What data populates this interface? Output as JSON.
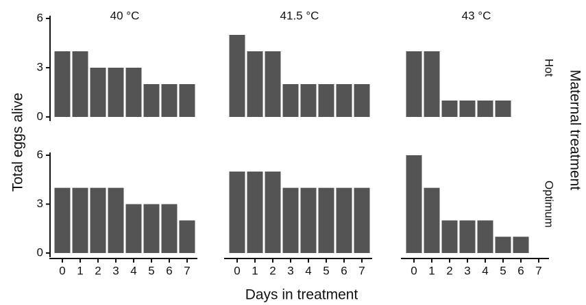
{
  "figure": {
    "ylabel": "Total eggs alive",
    "xlabel": "Days in treatment",
    "row_group_label": "Maternal treatment",
    "ylim": [
      0,
      6
    ],
    "yticks": [
      0,
      3,
      6
    ],
    "color": "#545454"
  },
  "chart_data": [
    {
      "type": "bar",
      "title": "40 °C",
      "values": [
        4,
        4,
        3,
        3,
        3,
        2,
        2,
        2
      ]
    },
    {
      "type": "bar",
      "title": "41.5 °C",
      "values": [
        5,
        4,
        4,
        2,
        2,
        2,
        2,
        2
      ]
    },
    {
      "type": "bar",
      "title": "43 °C",
      "row_label": "Hot",
      "values": [
        4,
        4,
        1,
        1,
        1,
        1,
        0,
        0
      ]
    },
    {
      "type": "bar",
      "categories": [
        0,
        1,
        2,
        3,
        4,
        5,
        6,
        7
      ],
      "values": [
        4,
        4,
        4,
        4,
        3,
        3,
        3,
        2
      ]
    },
    {
      "type": "bar",
      "categories": [
        0,
        1,
        2,
        3,
        4,
        5,
        6,
        7
      ],
      "values": [
        5,
        5,
        5,
        4,
        4,
        4,
        4,
        4
      ]
    },
    {
      "type": "bar",
      "row_label": "Optimum",
      "categories": [
        0,
        1,
        2,
        3,
        4,
        5,
        6,
        7
      ],
      "values": [
        6,
        4,
        2,
        2,
        2,
        1,
        1,
        0
      ]
    }
  ]
}
